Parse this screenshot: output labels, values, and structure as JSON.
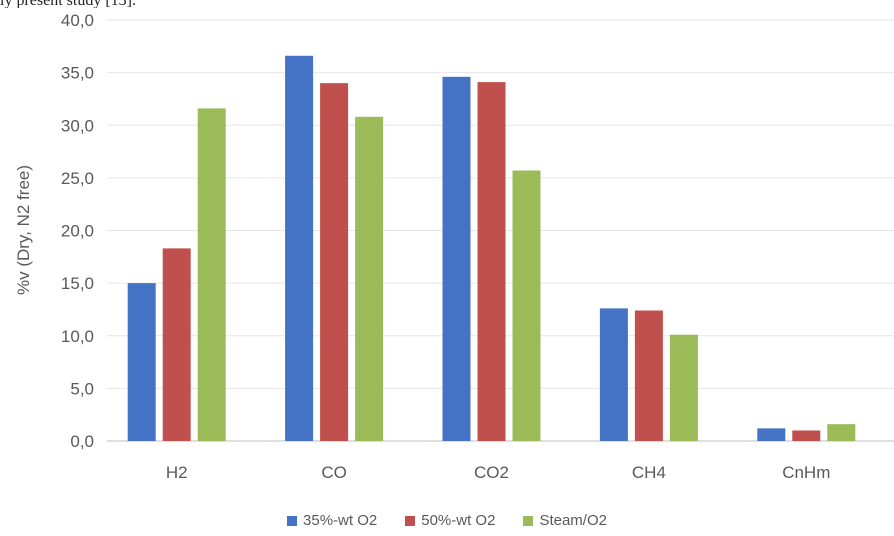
{
  "caption_fragment": "ly present study [13].",
  "chart_data": {
    "type": "bar",
    "categories": [
      "H2",
      "CO",
      "CO2",
      "CH4",
      "CnHm"
    ],
    "series": [
      {
        "name": "35%-wt O2",
        "color": "#4472c4",
        "values": [
          15.0,
          36.6,
          34.6,
          12.6,
          1.2
        ]
      },
      {
        "name": "50%-wt O2",
        "color": "#c0504d",
        "values": [
          18.3,
          34.0,
          34.1,
          12.4,
          1.0
        ]
      },
      {
        "name": "Steam/O2",
        "color": "#9bbb59",
        "values": [
          31.6,
          30.8,
          25.7,
          10.1,
          1.6
        ]
      }
    ],
    "title": "",
    "xlabel": "",
    "ylabel": "%v (Dry, N2 free)",
    "ylim": [
      0,
      40
    ],
    "yticks": [
      "0,0",
      "5,0",
      "10,0",
      "15,0",
      "20,0",
      "25,0",
      "30,0",
      "35,0",
      "40,0"
    ],
    "grid": true,
    "legend_position": "bottom"
  }
}
